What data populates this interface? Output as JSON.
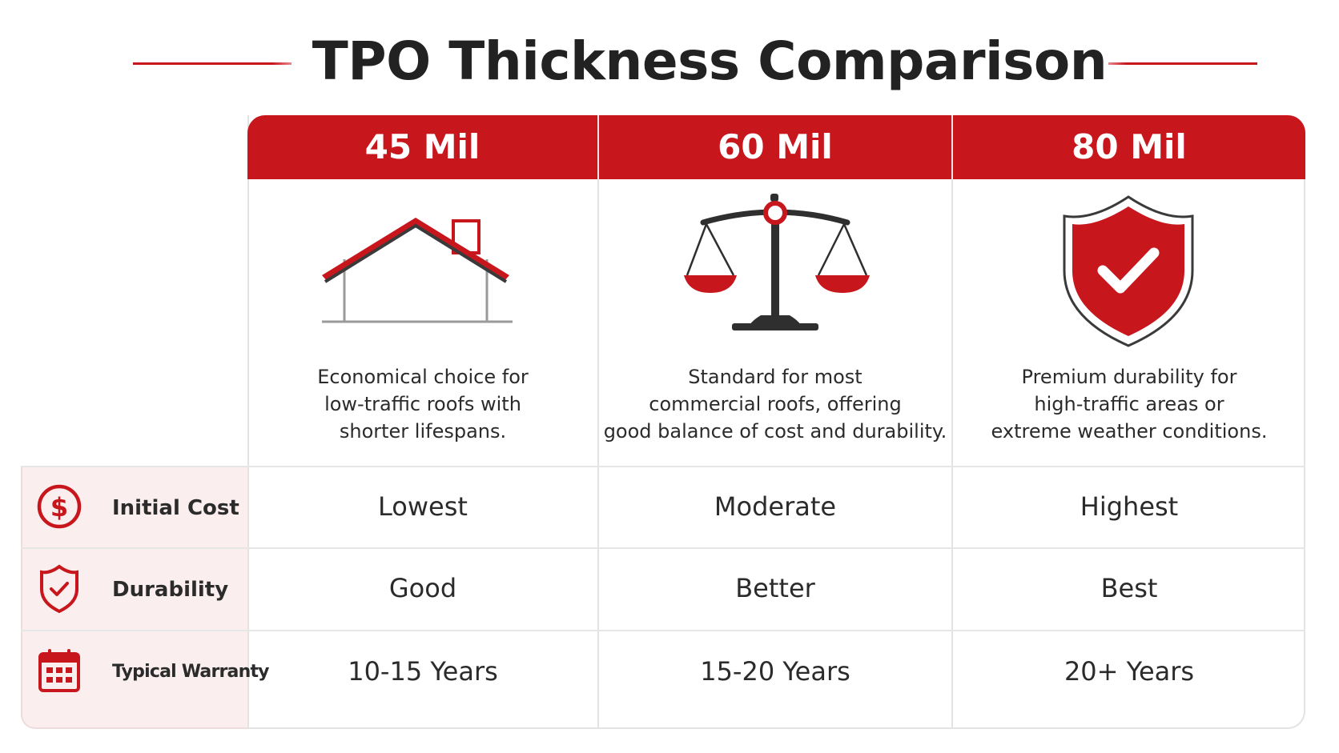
{
  "title": "TPO Thickness Comparison",
  "colors": {
    "accent": "#c8161d",
    "text": "#2b2b2b",
    "row_label_bg": "#fbeeee"
  },
  "columns": [
    {
      "label": "45 Mil",
      "icon": "house-icon",
      "description": [
        "Economical choice for",
        "low-traffic roofs with",
        "shorter lifespans."
      ]
    },
    {
      "label": "60 Mil",
      "icon": "balance-scale-icon",
      "description": [
        "Standard for most",
        "commercial roofs, offering",
        "good balance of cost and durability."
      ]
    },
    {
      "label": "80 Mil",
      "icon": "shield-check-icon",
      "description": [
        "Premium durability for",
        "high-traffic areas or",
        "extreme weather conditions."
      ]
    }
  ],
  "rows": [
    {
      "label": "Initial Cost",
      "icon": "dollar-circle-icon",
      "values": [
        "Lowest",
        "Moderate",
        "Highest"
      ]
    },
    {
      "label": "Durability",
      "icon": "shield-check-icon",
      "values": [
        "Good",
        "Better",
        "Best"
      ]
    },
    {
      "label": "Typical Warranty",
      "icon": "calendar-icon",
      "values": [
        "10-15 Years",
        "15-20 Years",
        "20+ Years"
      ]
    }
  ]
}
